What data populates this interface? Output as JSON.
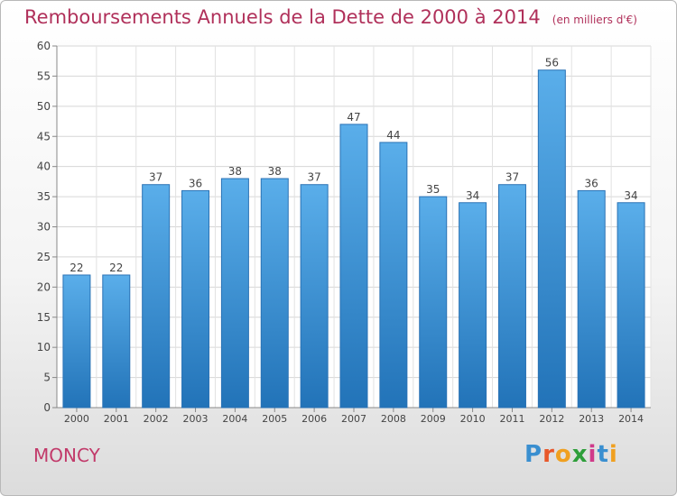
{
  "title": "Remboursements Annuels de la Dette de 2000 à 2014",
  "unit": "(en milliers d'€)",
  "city": "MONCY",
  "logo": {
    "letters": [
      "P",
      "r",
      "o",
      "x",
      "i",
      "t",
      "i"
    ],
    "colors": [
      "#3a8fd0",
      "#e8582a",
      "#f0a020",
      "#2e9e3a",
      "#d03a8a",
      "#3a8fd0",
      "#f0a020"
    ]
  },
  "chart_data": {
    "type": "bar",
    "categories": [
      "2000",
      "2001",
      "2002",
      "2003",
      "2004",
      "2005",
      "2006",
      "2007",
      "2008",
      "2009",
      "2010",
      "2011",
      "2012",
      "2013",
      "2014"
    ],
    "values": [
      22,
      22,
      37,
      36,
      38,
      38,
      37,
      47,
      44,
      35,
      34,
      37,
      56,
      36,
      34
    ],
    "ylim": [
      0,
      60
    ],
    "yticks": [
      0,
      5,
      10,
      15,
      20,
      25,
      30,
      35,
      40,
      45,
      50,
      55,
      60
    ],
    "grid": true,
    "bar_color": "#3b8fd6"
  }
}
